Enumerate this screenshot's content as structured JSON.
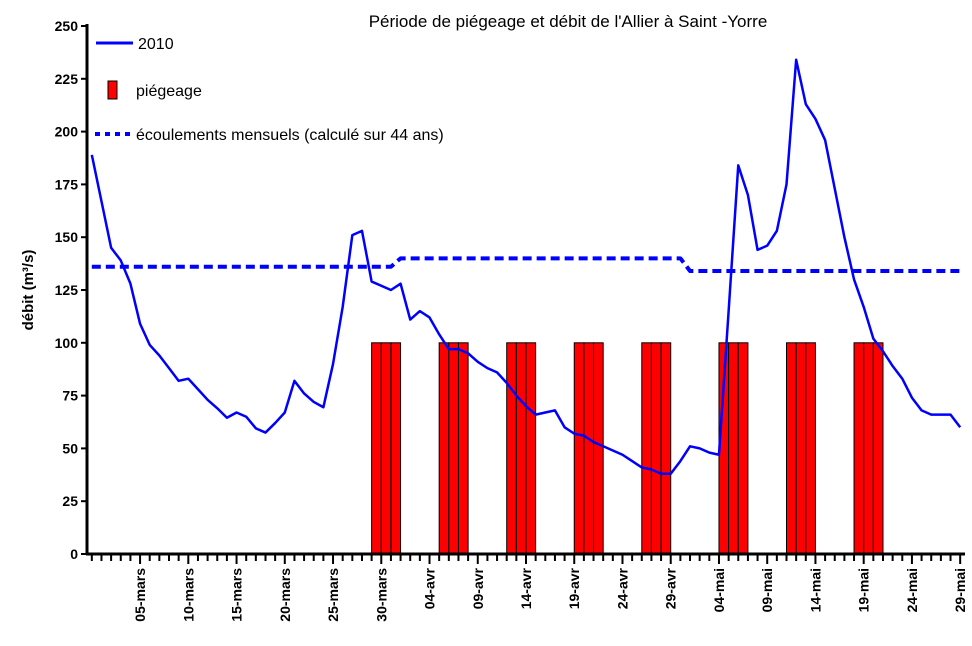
{
  "chart_data": {
    "type": "combo",
    "title": "Période de piégeage et débit de l'Allier à Saint -Yorre",
    "y_label": "débit (m³/s)",
    "categories": [
      null,
      null,
      null,
      null,
      null,
      "05-mars",
      null,
      null,
      null,
      null,
      "10-mars",
      null,
      null,
      null,
      null,
      "15-mars",
      null,
      null,
      null,
      null,
      "20-mars",
      null,
      null,
      null,
      null,
      "25-mars",
      null,
      null,
      null,
      null,
      "30-mars",
      null,
      null,
      null,
      null,
      "04-avr",
      null,
      null,
      null,
      null,
      "09-avr",
      null,
      null,
      null,
      null,
      "14-avr",
      null,
      null,
      null,
      null,
      "19-avr",
      null,
      null,
      null,
      null,
      "24-avr",
      null,
      null,
      null,
      null,
      "29-avr",
      null,
      null,
      null,
      null,
      "04-mai",
      null,
      null,
      null,
      null,
      "09-mai",
      null,
      null,
      null,
      null,
      "14-mai",
      null,
      null,
      null,
      null,
      "19-mai",
      null,
      null,
      null,
      null,
      "24-mai",
      null,
      null,
      null,
      null,
      "29-mai"
    ],
    "series": [
      {
        "name": "2010",
        "type": "line",
        "color": "#0000ff",
        "values": [
          189,
          167,
          145,
          139,
          128,
          109,
          99,
          94,
          88,
          82,
          83,
          78,
          73,
          69,
          64.5,
          67,
          65,
          59.5,
          57.5,
          62,
          67,
          82,
          76,
          72,
          69.5,
          90,
          117,
          151,
          153,
          129,
          127,
          125,
          128,
          111,
          115,
          112,
          104,
          97,
          97,
          95,
          91,
          88,
          86,
          81,
          75,
          70,
          66,
          67,
          68,
          60,
          57,
          56,
          53,
          51,
          49,
          47,
          44,
          41,
          40,
          38,
          38,
          44,
          51,
          50,
          48,
          47,
          115,
          184,
          170,
          144,
          146,
          153,
          175,
          234,
          213,
          206,
          196,
          173,
          150,
          130,
          117,
          102,
          96,
          89,
          83,
          74,
          68,
          66,
          66,
          66,
          60
        ]
      },
      {
        "name": "piégeage",
        "type": "bar",
        "color": "#ff0000",
        "values": [
          null,
          null,
          null,
          null,
          null,
          null,
          null,
          null,
          null,
          null,
          null,
          null,
          null,
          null,
          null,
          null,
          null,
          null,
          null,
          null,
          null,
          null,
          null,
          null,
          null,
          null,
          null,
          null,
          null,
          100,
          100,
          100,
          null,
          null,
          null,
          null,
          100,
          100,
          100,
          null,
          null,
          null,
          null,
          100,
          100,
          100,
          null,
          null,
          null,
          null,
          100,
          100,
          100,
          null,
          null,
          null,
          null,
          100,
          100,
          100,
          null,
          null,
          null,
          null,
          null,
          100,
          100,
          100,
          null,
          null,
          null,
          null,
          100,
          100,
          100,
          null,
          null,
          null,
          null,
          100,
          100,
          100,
          null,
          null,
          null,
          null,
          null,
          null,
          null,
          null,
          null
        ]
      },
      {
        "name": "écoulements mensuels (calculé sur 44 ans)",
        "type": "line",
        "dashed": true,
        "color": "#0000ff",
        "values": [
          136,
          136,
          136,
          136,
          136,
          136,
          136,
          136,
          136,
          136,
          136,
          136,
          136,
          136,
          136,
          136,
          136,
          136,
          136,
          136,
          136,
          136,
          136,
          136,
          136,
          136,
          136,
          136,
          136,
          136,
          136,
          136,
          140,
          140,
          140,
          140,
          140,
          140,
          140,
          140,
          140,
          140,
          140,
          140,
          140,
          140,
          140,
          140,
          140,
          140,
          140,
          140,
          140,
          140,
          140,
          140,
          140,
          140,
          140,
          140,
          140,
          140,
          134,
          134,
          134,
          134,
          134,
          134,
          134,
          134,
          134,
          134,
          134,
          134,
          134,
          134,
          134,
          134,
          134,
          134,
          134,
          134,
          134,
          134,
          134,
          134,
          134,
          134,
          134,
          134,
          134
        ]
      }
    ],
    "ylim": [
      0,
      250
    ],
    "yticks": [
      0,
      25,
      50,
      75,
      100,
      125,
      150,
      175,
      200,
      225,
      250
    ],
    "grid": false
  }
}
